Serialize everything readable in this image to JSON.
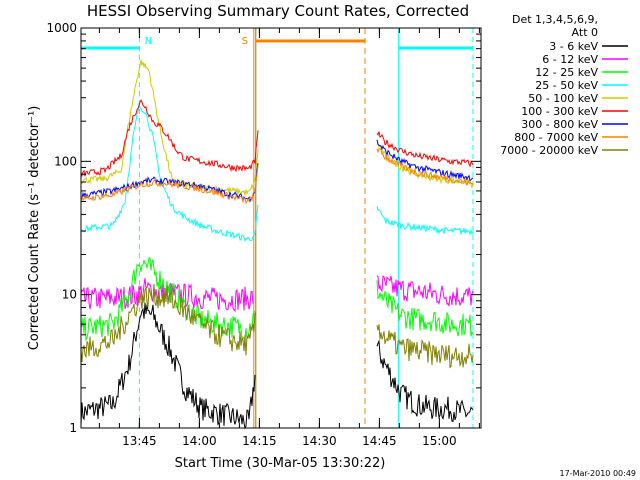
{
  "chart_data": {
    "type": "line",
    "title": "HESSI Observing Summary Count Rates, Corrected",
    "xlabel": "Start Time (30-Mar-05 13:30:22)",
    "ylabel": "Corrected Count Rate (s⁻¹ detector⁻¹)",
    "ylim": [
      1,
      1000
    ],
    "yscale": "log",
    "xlim_minutes": [
      0,
      100
    ],
    "x_ticks": [
      "13:45",
      "14:00",
      "14:15",
      "14:30",
      "14:45",
      "15:00"
    ],
    "x_tick_minutes": [
      14.6,
      29.6,
      44.6,
      59.6,
      74.6,
      89.6
    ],
    "y_ticks": [
      "1",
      "10",
      "100",
      "1000"
    ],
    "y_tick_values": [
      1,
      10,
      100,
      1000
    ],
    "legend_header": [
      "Det 1,3,4,5,6,9,",
      "Att 0"
    ],
    "series": [
      {
        "name": "3 - 6 keV",
        "color": "#000000",
        "x": [
          0,
          8,
          12,
          15,
          18,
          22,
          26,
          30,
          34,
          38,
          42,
          43.5
        ],
        "y": [
          1.3,
          1.5,
          3,
          7.5,
          7,
          4,
          2,
          1.4,
          1.3,
          1.2,
          1.1,
          2.5
        ],
        "x2": [
          74,
          76,
          80,
          84,
          88,
          92,
          96,
          98
        ],
        "y2": [
          4,
          3,
          1.8,
          1.5,
          1.4,
          1.4,
          1.3,
          1.3
        ]
      },
      {
        "name": "6 - 12 keV",
        "color": "#ff00ff",
        "x": [
          0,
          10,
          14,
          16,
          20,
          25,
          30,
          35,
          40,
          43
        ],
        "y": [
          9.2,
          9.5,
          10,
          11,
          10.5,
          10,
          9.5,
          9.2,
          9.3,
          9.5
        ],
        "x2": [
          74,
          80,
          85,
          90,
          95,
          98
        ],
        "y2": [
          12,
          11,
          10.5,
          10,
          9.8,
          9.7
        ]
      },
      {
        "name": "12 - 25 keV",
        "color": "#00ff00",
        "x": [
          0,
          8,
          12,
          14.5,
          16,
          18,
          22,
          26,
          30,
          34,
          38,
          42,
          43.5
        ],
        "y": [
          5.5,
          6,
          10,
          18,
          17,
          15,
          11,
          8,
          6.5,
          6,
          5.8,
          5.5,
          7
        ],
        "x2": [
          74,
          76,
          80,
          84,
          88,
          92,
          96,
          98
        ],
        "y2": [
          11,
          9,
          7,
          6.5,
          6.5,
          6,
          6,
          5.8
        ]
      },
      {
        "name": "25 - 50 keV",
        "color": "#00ffff",
        "x": [
          0,
          8,
          11,
          13,
          14.5,
          16,
          18,
          20,
          23,
          26,
          30,
          34,
          38,
          42,
          43.5,
          44.4
        ],
        "y": [
          31,
          33,
          50,
          150,
          260,
          240,
          150,
          70,
          45,
          38,
          33,
          30,
          28,
          26,
          28,
          50
        ],
        "x2": [
          74,
          76,
          80,
          84,
          88,
          92,
          96,
          98
        ],
        "y2": [
          45,
          36,
          33,
          32,
          31,
          30,
          30,
          30
        ]
      },
      {
        "name": "50 - 100 keV",
        "color": "#cccc00",
        "x": [
          0,
          6,
          10,
          12,
          14,
          15,
          17,
          18,
          20,
          22,
          23,
          26,
          30,
          34,
          38,
          42,
          43.5,
          44.4
        ],
        "y": [
          72,
          74,
          85,
          200,
          420,
          560,
          480,
          330,
          160,
          90,
          70,
          66,
          64,
          62,
          60,
          58,
          70,
          140
        ],
        "x2": [
          74,
          76,
          80,
          84,
          88,
          92,
          96,
          98
        ],
        "y2": [
          140,
          110,
          90,
          80,
          75,
          72,
          70,
          66
        ]
      },
      {
        "name": "100 - 300 keV",
        "color": "#ff0000",
        "x": [
          0,
          6,
          10,
          12,
          14,
          15,
          16,
          18,
          20,
          22,
          24,
          26,
          30,
          34,
          38,
          42,
          43.5,
          44.4
        ],
        "y": [
          80,
          85,
          110,
          180,
          250,
          280,
          260,
          200,
          180,
          150,
          120,
          105,
          100,
          95,
          90,
          88,
          100,
          180
        ],
        "x2": [
          74,
          76,
          80,
          84,
          88,
          92,
          96,
          98
        ],
        "y2": [
          165,
          140,
          120,
          110,
          105,
          100,
          98,
          95
        ]
      },
      {
        "name": "300 - 800 keV",
        "color": "#0000ff",
        "x": [
          0,
          8,
          12,
          15,
          18,
          22,
          26,
          30,
          34,
          38,
          42,
          43.5,
          44.4
        ],
        "y": [
          55,
          60,
          65,
          70,
          72,
          70,
          68,
          65,
          60,
          56,
          52,
          60,
          110
        ],
        "x2": [
          74,
          76,
          80,
          84,
          88,
          92,
          96,
          98
        ],
        "y2": [
          140,
          120,
          100,
          90,
          85,
          80,
          77,
          75
        ]
      },
      {
        "name": "800 - 7000 keV",
        "color": "#ff8000",
        "x": [
          0,
          8,
          12,
          15,
          18,
          22,
          26,
          30,
          34,
          38,
          42,
          43.5,
          44.4
        ],
        "y": [
          52,
          56,
          62,
          67,
          69,
          68,
          65,
          62,
          58,
          54,
          50,
          58,
          105
        ],
        "x2": [
          74,
          76,
          80,
          84,
          88,
          92,
          96,
          98
        ],
        "y2": [
          125,
          108,
          92,
          82,
          78,
          74,
          70,
          68
        ]
      },
      {
        "name": "7000 - 20000 keV",
        "color": "#808000",
        "x": [
          0,
          8,
          12,
          15,
          18,
          22,
          26,
          30,
          34,
          38,
          42,
          43.5
        ],
        "y": [
          3.8,
          4.5,
          7,
          9.5,
          9.8,
          9.5,
          7.5,
          6,
          5,
          4.5,
          4.2,
          6
        ],
        "x2": [
          74,
          76,
          80,
          84,
          88,
          92,
          96,
          98
        ],
        "y2": [
          6,
          4.8,
          4,
          3.8,
          3.6,
          3.5,
          3.5,
          3.5
        ]
      }
    ],
    "annotations": [
      {
        "text": "N",
        "minute": 14.6,
        "color": "#00ffff"
      },
      {
        "text": "S",
        "minute": 43.2,
        "color": "#ff8000"
      }
    ],
    "night_bars": [
      [
        0,
        14.6
      ],
      [
        79.4,
        98
      ]
    ],
    "saa_bar": [
      43.2,
      71
    ]
  },
  "timestamp": "17-Mar-2010 00:49"
}
